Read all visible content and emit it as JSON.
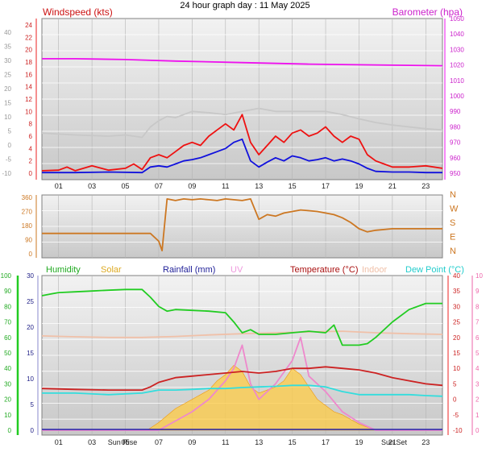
{
  "title": "24 hour graph day : 11 May 2025",
  "x_ticks": [
    "01",
    "03",
    "05",
    "07",
    "09",
    "11",
    "13",
    "15",
    "17",
    "19",
    "21",
    "23"
  ],
  "chart_data": [
    {
      "type": "line",
      "name": "wind-baro",
      "left_label": "Windspeed (kts)",
      "right_label": "Barometer (hpa)",
      "outer_ticks": [
        "40",
        "35",
        "30",
        "25",
        "20",
        "15",
        "10",
        "5",
        "0",
        "-5",
        "-10"
      ],
      "wind_ticks": [
        "24",
        "22",
        "20",
        "18",
        "16",
        "14",
        "12",
        "10",
        "8",
        "6",
        "4",
        "2",
        "0"
      ],
      "baro_ticks": [
        "1050",
        "1040",
        "1030",
        "1020",
        "1010",
        "1000",
        "990",
        "980",
        "970",
        "960",
        "950"
      ],
      "wind_ylim": [
        0,
        24
      ],
      "baro_ylim": [
        950,
        1050
      ],
      "x_range": [
        0,
        24
      ],
      "series": [
        {
          "name": "Barometer",
          "color": "#ee11ee",
          "x": [
            0,
            2,
            5,
            8,
            12,
            16,
            20,
            24
          ],
          "y": [
            1024,
            1024,
            1023.5,
            1022.5,
            1021.5,
            1020.5,
            1020,
            1019.5
          ]
        },
        {
          "color": "#c8c8c8",
          "x": [
            0,
            2,
            4,
            5,
            6,
            6.5,
            7,
            7.5,
            8,
            8.5,
            9,
            10,
            11,
            12,
            13,
            14,
            15,
            16,
            17,
            18,
            19,
            20,
            21,
            22,
            23,
            24
          ],
          "y": [
            6.5,
            6.2,
            6.0,
            6.2,
            5.8,
            7.5,
            8.5,
            9.2,
            9.0,
            9.5,
            10,
            9.8,
            9.5,
            10,
            10.5,
            10,
            10,
            10,
            10,
            9.5,
            8.8,
            8.2,
            7.8,
            7.5,
            7.2,
            7.0
          ]
        },
        {
          "name": "Windspeed",
          "color": "#ee1111",
          "x": [
            0,
            1,
            1.5,
            2,
            3,
            4,
            5,
            5.5,
            6,
            6.5,
            7,
            7.5,
            8,
            8.5,
            9,
            9.5,
            10,
            10.5,
            11,
            11.5,
            12,
            12.5,
            13,
            13.5,
            14,
            14.5,
            15,
            15.5,
            16,
            16.5,
            17,
            17.5,
            18,
            18.5,
            19,
            19.5,
            20,
            20.5,
            21,
            22,
            23,
            24
          ],
          "y": [
            0.4,
            0.5,
            1,
            0.4,
            1.2,
            0.5,
            0.8,
            1.5,
            0.6,
            2.5,
            3,
            2.5,
            3.5,
            4.5,
            5,
            4.5,
            6,
            7,
            8,
            7,
            9.5,
            5,
            3,
            4.5,
            6,
            5,
            6.5,
            7,
            6,
            6.5,
            7.5,
            6,
            5,
            6,
            5.5,
            3,
            2,
            1.5,
            1,
            1,
            1.2,
            0.8
          ]
        },
        {
          "color": "#1111dd",
          "x": [
            0,
            2,
            4,
            6,
            6.5,
            7,
            7.5,
            8,
            8.5,
            9,
            9.5,
            10,
            10.5,
            11,
            11.5,
            12,
            12.5,
            13,
            13.5,
            14,
            14.5,
            15,
            15.5,
            16,
            16.5,
            17,
            17.5,
            18,
            18.5,
            19,
            19.5,
            20,
            21,
            22,
            23,
            24
          ],
          "y": [
            0.1,
            0.1,
            0.2,
            0.1,
            1,
            1.2,
            1,
            1.5,
            2,
            2.2,
            2.5,
            3,
            3.5,
            4,
            5,
            5.5,
            2,
            1,
            1.8,
            2.5,
            2,
            2.8,
            2.5,
            2,
            2.2,
            2.5,
            2,
            2.3,
            2,
            1.5,
            0.8,
            0.3,
            0.2,
            0.2,
            0.1,
            0.1
          ]
        }
      ]
    },
    {
      "type": "line",
      "name": "wind-direction",
      "left_ticks": [
        "360",
        "270",
        "180",
        "90",
        "0"
      ],
      "right_ticks": [
        "N",
        "W",
        "S",
        "E",
        "N"
      ],
      "ylim": [
        0,
        360
      ],
      "x_range": [
        0,
        24
      ],
      "series": [
        {
          "name": "Wind Direction",
          "color": "#cc7722",
          "x": [
            0,
            3,
            5,
            6.5,
            7,
            7.2,
            7.5,
            8,
            8.5,
            9,
            9.5,
            10,
            10.5,
            11,
            11.5,
            12,
            12.5,
            13,
            13.5,
            14,
            14.5,
            15,
            15.5,
            16,
            16.5,
            17,
            17.5,
            18,
            18.5,
            19,
            19.5,
            20,
            21,
            22,
            23,
            24
          ],
          "y": [
            130,
            130,
            130,
            130,
            80,
            20,
            350,
            340,
            350,
            345,
            350,
            345,
            340,
            350,
            345,
            340,
            350,
            220,
            250,
            240,
            260,
            270,
            280,
            275,
            270,
            260,
            250,
            230,
            200,
            160,
            140,
            150,
            160,
            160,
            160,
            160
          ]
        }
      ]
    },
    {
      "type": "line",
      "name": "multi-sensor",
      "labels": [
        "Humidity",
        "Solar",
        "Rainfall (mm)",
        "UV",
        "Temperature (°C)",
        "Indoor",
        "Dew Point (°C)"
      ],
      "label_colors": [
        "#22aa22",
        "#ddaa22",
        "#222299",
        "#ee99dd",
        "#aa1111",
        "#f0c0a8",
        "#22cccc"
      ],
      "humidity_ticks": [
        "100",
        "90",
        "80",
        "70",
        "60",
        "50",
        "40",
        "30",
        "20",
        "10",
        "0"
      ],
      "rain_ticks": [
        "30",
        "25",
        "20",
        "15",
        "10",
        "5",
        "0"
      ],
      "temp_ticks": [
        "40",
        "35",
        "30",
        "25",
        "20",
        "15",
        "10",
        "5",
        "0",
        "-5",
        "-10"
      ],
      "uv_ticks": [
        "10",
        "9",
        "8",
        "7",
        "6",
        "5",
        "4",
        "3",
        "2",
        "1",
        "0"
      ],
      "extra_labels": [
        "Sun Rise",
        "Sun Set"
      ],
      "humidity_ylim": [
        0,
        100
      ],
      "temp_ylim": [
        -10,
        40
      ],
      "uv_ylim": [
        0,
        10
      ],
      "x_range": [
        0,
        24
      ],
      "series": [
        {
          "name": "Humidity",
          "color": "#22cc22",
          "x": [
            0,
            0.5,
            1,
            2,
            3,
            4,
            5,
            6,
            6.5,
            7,
            7.5,
            8,
            9,
            10,
            11,
            11.5,
            12,
            12.5,
            13,
            14,
            15,
            16,
            17,
            17.5,
            18,
            18.5,
            19,
            19.5,
            20,
            21,
            22,
            23,
            24
          ],
          "y": [
            87,
            88,
            89,
            89.5,
            90,
            90.5,
            91,
            91,
            86,
            80,
            77,
            78,
            77.5,
            77,
            76,
            70,
            63,
            65,
            62,
            62,
            63,
            64,
            63,
            68,
            55,
            55,
            55,
            56,
            60,
            70,
            78,
            82,
            82
          ]
        },
        {
          "name": "Indoor",
          "color": "#f0c0a8",
          "x": [
            0,
            2,
            4,
            6,
            8,
            10,
            12,
            14,
            16,
            18,
            20,
            22,
            24
          ],
          "y": [
            20.5,
            20.2,
            20,
            20,
            20.3,
            20.8,
            21.2,
            21.5,
            21.8,
            22,
            21.5,
            21.2,
            21
          ]
        },
        {
          "name": "Solar",
          "color": "#ffcc44",
          "x": [
            0,
            6.3,
            7,
            8,
            9,
            10,
            10.5,
            11,
            11.5,
            12,
            12.5,
            13,
            14,
            14.5,
            15,
            15.5,
            16,
            16.5,
            17,
            17.5,
            18,
            19,
            19.5,
            20,
            24
          ],
          "y": [
            -10,
            -10,
            -7.5,
            -3,
            0,
            3,
            6,
            8,
            11,
            9,
            4,
            2,
            4,
            6,
            10,
            8,
            4,
            0,
            -2,
            -4,
            -5,
            -8,
            -9,
            -10,
            -10
          ]
        },
        {
          "name": "UV",
          "color": "#ee88cc",
          "x": [
            0,
            7,
            8,
            9,
            10,
            11,
            11.5,
            12,
            12.5,
            13,
            14,
            15,
            15.5,
            16,
            17,
            18,
            19,
            20,
            24
          ],
          "y": [
            0,
            0,
            0.6,
            1.2,
            2,
            3.2,
            4,
            5.5,
            3,
            2,
            3,
            4.5,
            6,
            3.5,
            2.5,
            1.2,
            0.5,
            0,
            0
          ]
        },
        {
          "name": "Temperature (°C)",
          "color": "#cc2222",
          "x": [
            0,
            2,
            4,
            5,
            6,
            6.5,
            7,
            8,
            9,
            10,
            11,
            12,
            13,
            14,
            15,
            16,
            17,
            18,
            19,
            20,
            21,
            22,
            23,
            24
          ],
          "y": [
            3.5,
            3.2,
            3,
            3,
            3,
            4,
            5.5,
            7,
            7.5,
            8,
            8.5,
            9,
            8.5,
            9,
            10,
            10,
            10.5,
            10,
            9.5,
            8.5,
            7,
            6,
            5,
            4.5
          ]
        },
        {
          "name": "Dew Point (°C)",
          "color": "#33dddd",
          "x": [
            0,
            2,
            4,
            6,
            7,
            8,
            9,
            10,
            11,
            12,
            13,
            14,
            15,
            16,
            17,
            18,
            19,
            20,
            21,
            22,
            23,
            24
          ],
          "y": [
            2,
            2,
            1.5,
            2,
            3,
            3,
            3.2,
            3.5,
            3.5,
            3.8,
            4,
            4.2,
            4.5,
            4.5,
            4,
            2.5,
            1.5,
            1.5,
            1.5,
            1.5,
            1.2,
            1
          ]
        }
      ]
    }
  ]
}
